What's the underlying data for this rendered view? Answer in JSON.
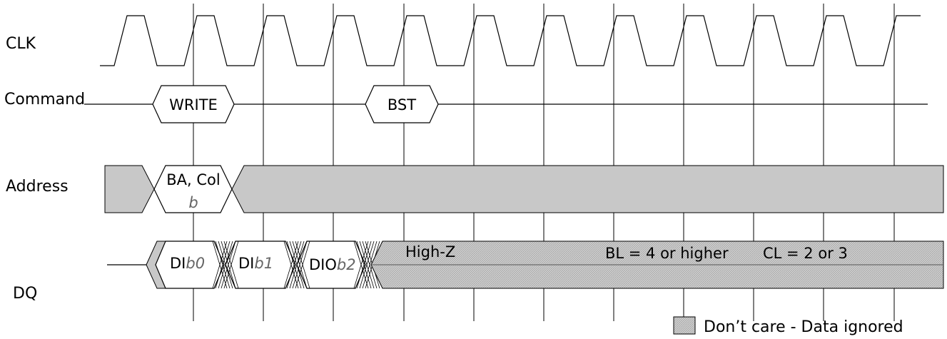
{
  "signals": {
    "clk": "CLK",
    "command": "Command",
    "address": "Address",
    "dq": "DQ"
  },
  "commands": {
    "write": "WRITE",
    "bst": "BST"
  },
  "address": {
    "bank_col": "BA, Col",
    "col_value": "b"
  },
  "dq_data": [
    {
      "prefix": "DI",
      "suffix": "b0"
    },
    {
      "prefix": "DI",
      "suffix": "b1"
    },
    {
      "prefix": "DIO",
      "suffix": "b2"
    }
  ],
  "dq_state": "High-Z",
  "notes": {
    "burst_length": "BL = 4 or higher",
    "cas_latency": "CL = 2 or 3"
  },
  "legend": {
    "dont_care": "Don’t care - Data ignored"
  },
  "colors": {
    "dont_care_fill": "#c8c8c8",
    "line": "#000000",
    "suffix_text": "#666666"
  }
}
